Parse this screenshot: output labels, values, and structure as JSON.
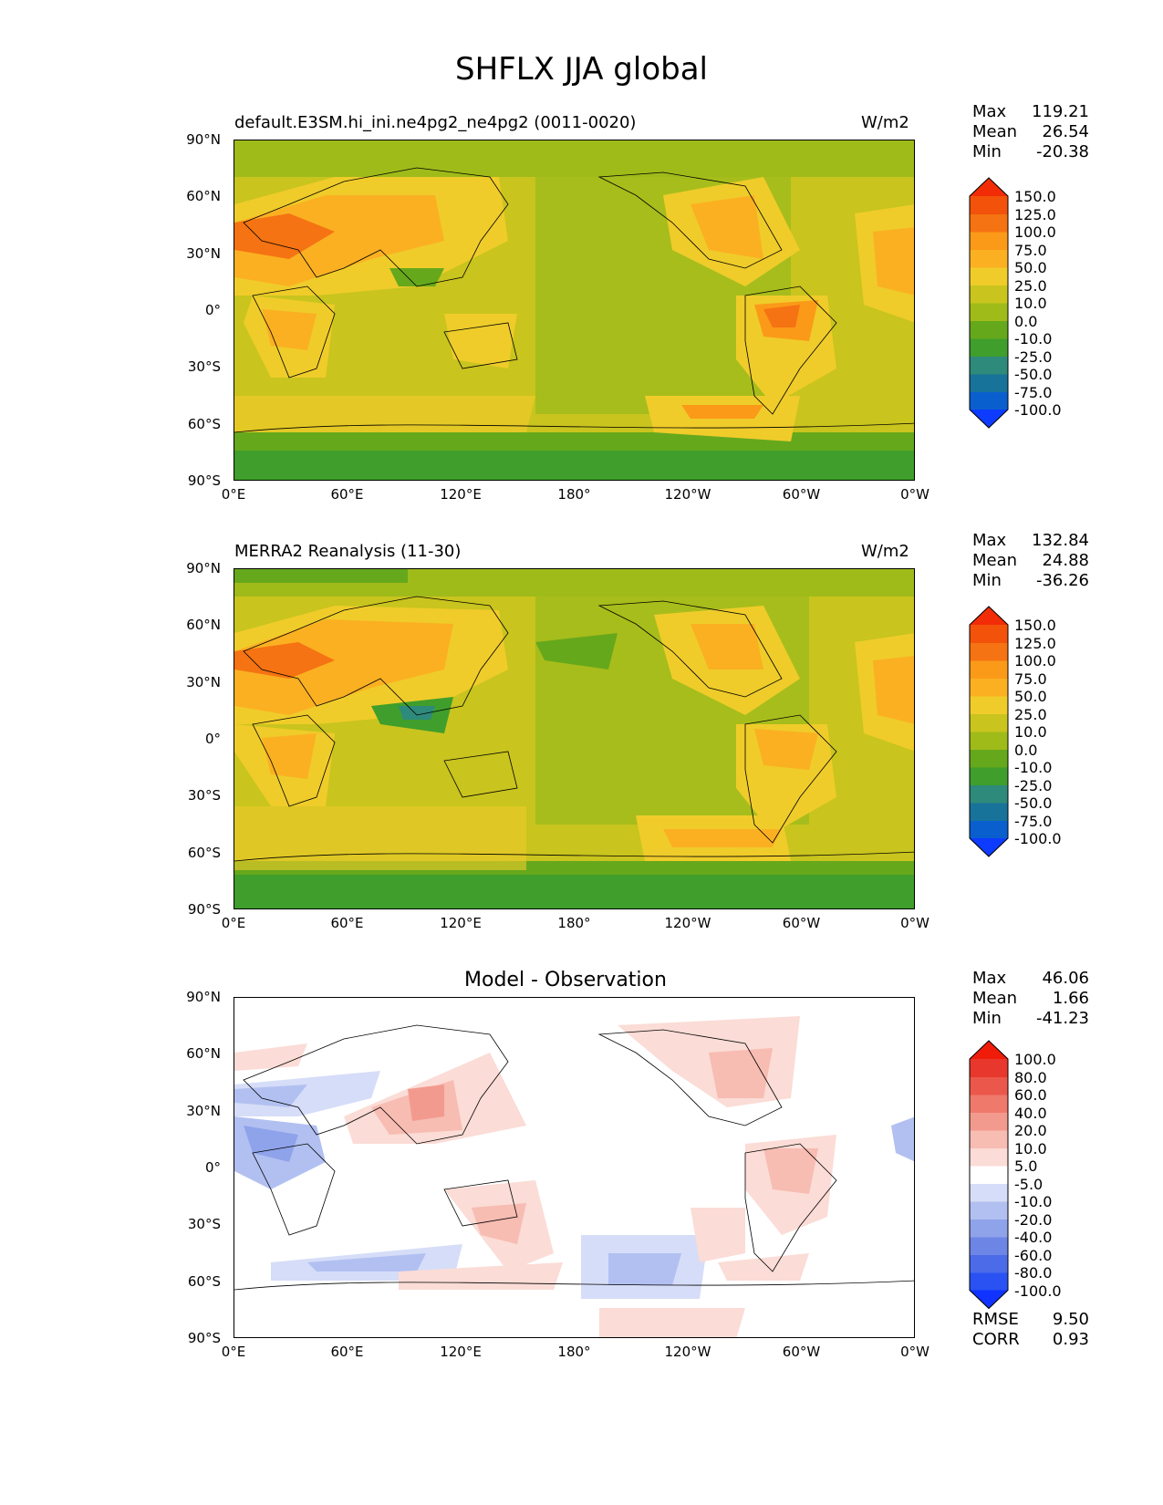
{
  "title": "SHFLX JJA global",
  "lat_ticks": [
    "90°N",
    "60°N",
    "30°N",
    "0°",
    "30°S",
    "60°S",
    "90°S"
  ],
  "lon_ticks": [
    "0°E",
    "60°E",
    "120°E",
    "180°",
    "120°W",
    "60°W",
    "0°W"
  ],
  "panels": [
    {
      "left_title": "default.E3SM.hi_ini.ne4pg2_ne4pg2 (0011-0020)",
      "center_title": "",
      "units": "W/m2",
      "stats": {
        "max_label": "Max",
        "max": "119.21",
        "mean_label": "Mean",
        "mean": "26.54",
        "min_label": "Min",
        "min": "-20.38"
      },
      "colorbar_levels": [
        "150.0",
        "125.0",
        "100.0",
        "75.0",
        "50.0",
        "25.0",
        "10.0",
        "0.0",
        "-10.0",
        "-25.0",
        "-50.0",
        "-75.0",
        "-100.0"
      ]
    },
    {
      "left_title": "MERRA2 Reanalysis (11-30)",
      "center_title": "",
      "units": "W/m2",
      "stats": {
        "max_label": "Max",
        "max": "132.84",
        "mean_label": "Mean",
        "mean": "24.88",
        "min_label": "Min",
        "min": "-36.26"
      },
      "colorbar_levels": [
        "150.0",
        "125.0",
        "100.0",
        "75.0",
        "50.0",
        "25.0",
        "10.0",
        "0.0",
        "-10.0",
        "-25.0",
        "-50.0",
        "-75.0",
        "-100.0"
      ]
    },
    {
      "left_title": "",
      "center_title": "Model - Observation",
      "units": "",
      "stats": {
        "max_label": "Max",
        "max": "46.06",
        "mean_label": "Mean",
        "mean": "1.66",
        "min_label": "Min",
        "min": "-41.23"
      },
      "colorbar_levels": [
        "100.0",
        "80.0",
        "60.0",
        "40.0",
        "20.0",
        "10.0",
        "5.0",
        "-5.0",
        "-10.0",
        "-20.0",
        "-40.0",
        "-60.0",
        "-80.0",
        "-100.0"
      ],
      "metrics": {
        "rmse_label": "RMSE",
        "rmse": "9.50",
        "corr_label": "CORR",
        "corr": "0.93"
      }
    }
  ],
  "colors": {
    "field_scale": [
      "#0d3bff",
      "#0a5fcf",
      "#18739a",
      "#2e8a7a",
      "#3f9e2c",
      "#66a81c",
      "#9fbb1a",
      "#c9c41e",
      "#efcc2a",
      "#fbb022",
      "#fb9a18",
      "#f57312",
      "#f2520a",
      "#f22c06"
    ],
    "diff_scale": [
      "#1033ff",
      "#2a52f2",
      "#4b6be8",
      "#6d86e6",
      "#8fa3ea",
      "#b2c0f1",
      "#d6ddf8",
      "#ffffff",
      "#fbdcd6",
      "#f7bcb2",
      "#f39a8e",
      "#ef7a6c",
      "#eb574b",
      "#e8372c",
      "#ef1c0a"
    ]
  }
}
